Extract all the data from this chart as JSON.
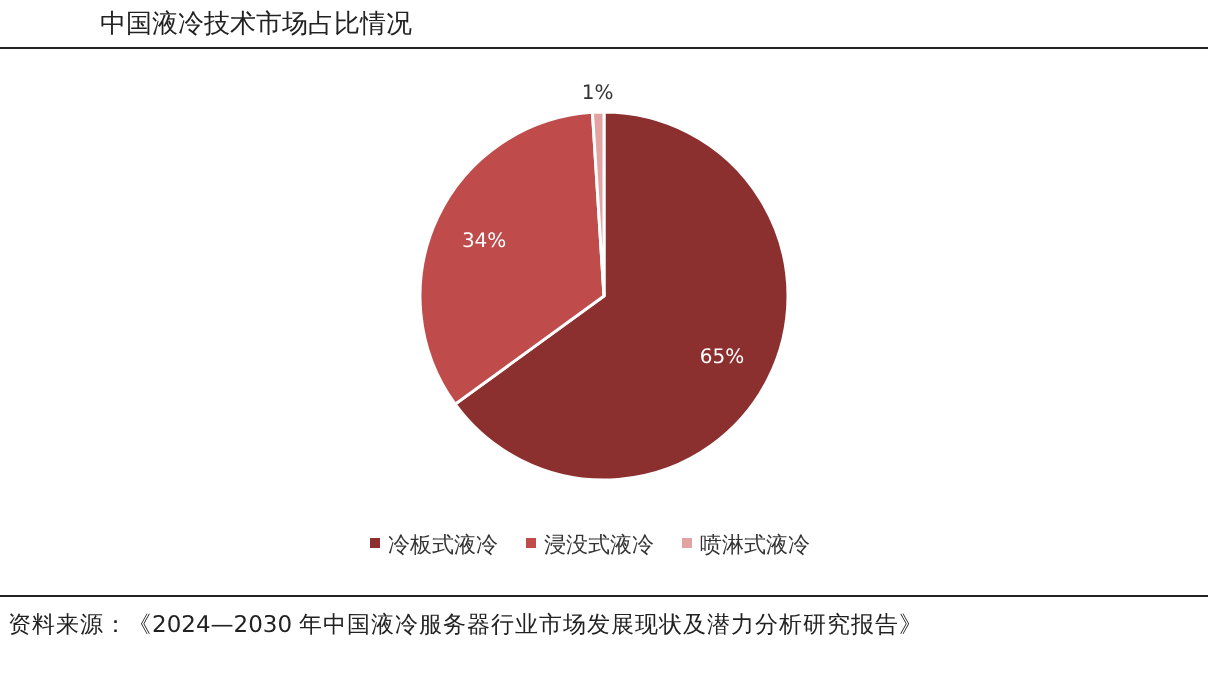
{
  "chart_data": {
    "type": "pie",
    "title": "中国液冷技术市场占比情况",
    "categories": [
      "冷板式液冷",
      "浸没式液冷",
      "喷淋式液冷"
    ],
    "values": [
      65,
      34,
      1
    ],
    "colors": [
      "#8c2f2f",
      "#bf4b4b",
      "#e3a3a3"
    ],
    "value_labels": [
      "65%",
      "34%",
      "1%"
    ],
    "legend": "bottom",
    "annotations": [
      "资料来源：《2024—2030 年中国液冷服务器行业市场发展现状及潜力分析研究报告》"
    ]
  }
}
